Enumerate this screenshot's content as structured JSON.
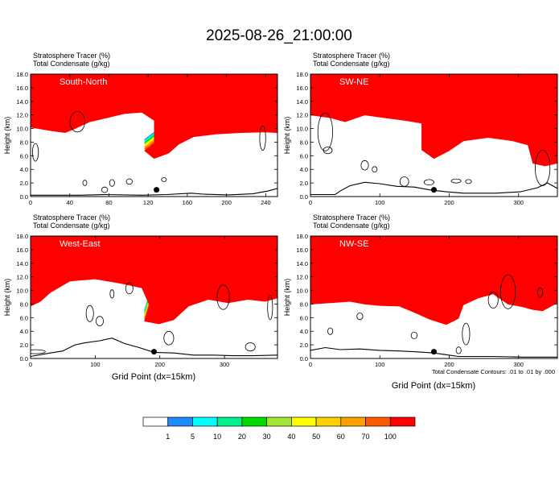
{
  "title": "2025-08-26_21:00:00",
  "xlabel": "Grid Point (dx=15km)",
  "ylabel": "Height (km)",
  "contour_note": "Total Condensate Contours: .01 to .01 by .000",
  "colorbar": {
    "levels": [
      "1",
      "5",
      "10",
      "20",
      "30",
      "40",
      "50",
      "60",
      "70",
      "100"
    ],
    "colors": [
      "#ffffff",
      "#1e8cff",
      "#00ffff",
      "#00f08c",
      "#00dc00",
      "#a0e632",
      "#ffff00",
      "#ffd200",
      "#ffa000",
      "#ff5a00",
      "#ff0000"
    ]
  },
  "chart_data": [
    {
      "type": "heatmap",
      "label": "South-North",
      "field_labels": [
        "Stratosphere Tracer   (%)",
        "Total Condensate   (g/kg)"
      ],
      "xlim": [
        0,
        252
      ],
      "ylim": [
        0,
        18
      ],
      "xticks": [
        "0",
        "40",
        "80",
        "120",
        "160",
        "200",
        "240"
      ],
      "yticks": [
        "0.0",
        "2.0",
        "4.0",
        "6.0",
        "8.0",
        "10.0",
        "12.0",
        "14.0",
        "16.0",
        "18.0"
      ]
    },
    {
      "type": "heatmap",
      "label": "SW-NE",
      "field_labels": [
        "Stratosphere Tracer   (%)",
        "Total Condensate   (g/kg)"
      ],
      "xlim": [
        0,
        356
      ],
      "ylim": [
        0,
        18
      ],
      "xticks": [
        "0",
        "100",
        "200",
        "300"
      ],
      "yticks": [
        "0.0",
        "2.0",
        "4.0",
        "6.0",
        "8.0",
        "10.0",
        "12.0",
        "14.0",
        "16.0",
        "18.0"
      ]
    },
    {
      "type": "heatmap",
      "label": "West-East",
      "field_labels": [
        "Stratosphere Tracer   (%)",
        "Total Condensate   (g/kg)"
      ],
      "xlim": [
        0,
        382
      ],
      "ylim": [
        0,
        18
      ],
      "xticks": [
        "0",
        "100",
        "200",
        "300"
      ],
      "yticks": [
        "0.0",
        "2.0",
        "4.0",
        "6.0",
        "8.0",
        "10.0",
        "12.0",
        "14.0",
        "16.0",
        "18.0"
      ]
    },
    {
      "type": "heatmap",
      "label": "NW-SE",
      "field_labels": [
        "Stratosphere Tracer   (%)",
        "Total Condensate   (g/kg)"
      ],
      "xlim": [
        0,
        356
      ],
      "ylim": [
        0,
        18
      ],
      "xticks": [
        "0",
        "100",
        "200",
        "300"
      ],
      "yticks": [
        "0.0",
        "2.0",
        "4.0",
        "6.0",
        "8.0",
        "10.0",
        "12.0",
        "14.0",
        "16.0",
        "18.0"
      ]
    }
  ]
}
